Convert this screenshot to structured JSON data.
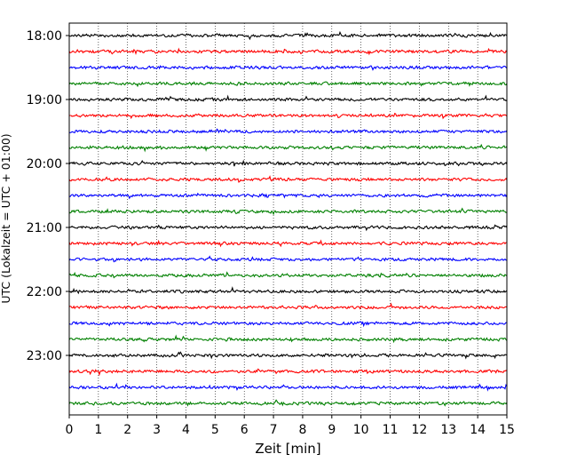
{
  "chart_data": {
    "type": "line",
    "title": "",
    "xlabel": "Zeit  [min]",
    "ylabel": "UTC (Lokalzeit = UTC + 01:00)",
    "xlim": [
      0,
      15
    ],
    "x_ticks": [
      "0",
      "1",
      "2",
      "3",
      "4",
      "5",
      "6",
      "7",
      "8",
      "9",
      "10",
      "11",
      "12",
      "13",
      "14",
      "15"
    ],
    "y_tick_labels": [
      "18:00",
      "19:00",
      "20:00",
      "21:00",
      "22:00",
      "23:00"
    ],
    "grid": "vertical-dotted",
    "legend": "none",
    "trace_interval_minutes": 15,
    "start_time": "18:00",
    "end_time": "23:45",
    "trace_count": 24,
    "trace_colors": [
      "#000000",
      "#ff0000",
      "#0000ff",
      "#008000"
    ]
  }
}
